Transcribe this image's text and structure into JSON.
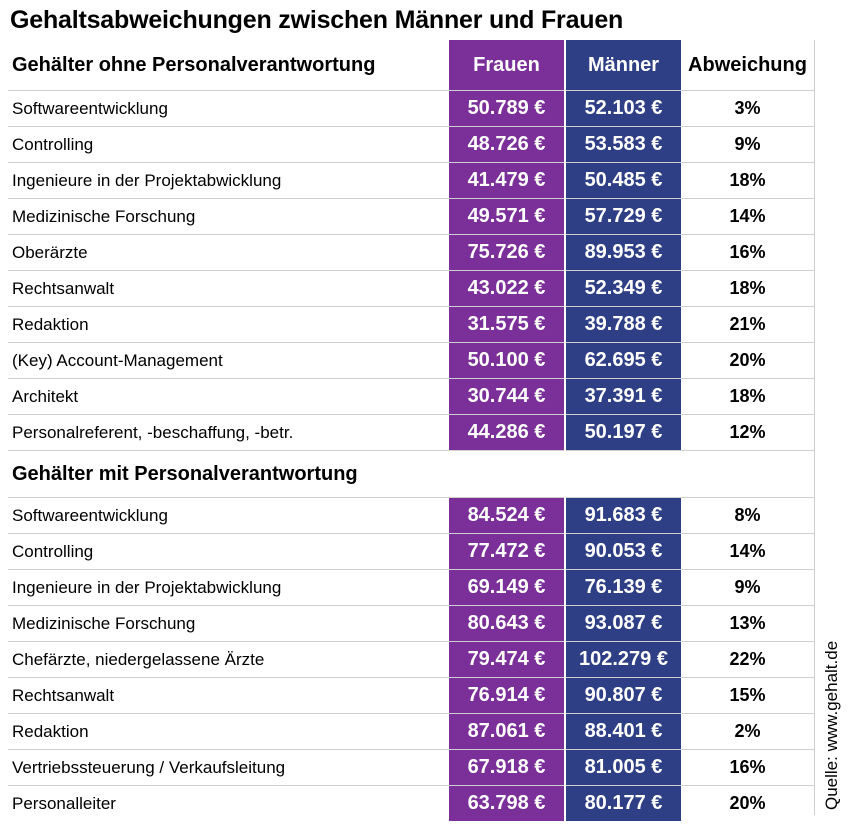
{
  "title": "Gehaltsabweichungen zwischen Männer und Frauen",
  "source": "Quelle: www.gehalt.de",
  "colors": {
    "frauen": "#7b2f98",
    "maenner": "#2f3f86"
  },
  "chart_data": {
    "type": "table",
    "columns": [
      "Frauen",
      "Männer",
      "Abweichung"
    ],
    "sections": [
      {
        "label": "Gehälter ohne Personalverantwortung",
        "rows": [
          {
            "category": "Softwareentwicklung",
            "frauen": "50.789 €",
            "maenner": "52.103 €",
            "abweichung": "3%"
          },
          {
            "category": "Controlling",
            "frauen": "48.726 €",
            "maenner": "53.583 €",
            "abweichung": "9%"
          },
          {
            "category": "Ingenieure in der Projektabwicklung",
            "frauen": "41.479 €",
            "maenner": "50.485 €",
            "abweichung": "18%"
          },
          {
            "category": "Medizinische Forschung",
            "frauen": "49.571 €",
            "maenner": "57.729 €",
            "abweichung": "14%"
          },
          {
            "category": "Oberärzte",
            "frauen": "75.726 €",
            "maenner": "89.953 €",
            "abweichung": "16%"
          },
          {
            "category": "Rechtsanwalt",
            "frauen": "43.022 €",
            "maenner": "52.349 €",
            "abweichung": "18%"
          },
          {
            "category": "Redaktion",
            "frauen": "31.575 €",
            "maenner": "39.788 €",
            "abweichung": "21%"
          },
          {
            "category": "(Key) Account-Management",
            "frauen": "50.100 €",
            "maenner": "62.695 €",
            "abweichung": "20%"
          },
          {
            "category": "Architekt",
            "frauen": "30.744 €",
            "maenner": "37.391 €",
            "abweichung": "18%"
          },
          {
            "category": "Personalreferent, -beschaffung, -betr.",
            "frauen": "44.286 €",
            "maenner": "50.197 €",
            "abweichung": "12%"
          }
        ]
      },
      {
        "label": "Gehälter mit Personalverantwortung",
        "rows": [
          {
            "category": "Softwareentwicklung",
            "frauen": "84.524 €",
            "maenner": "91.683 €",
            "abweichung": "8%"
          },
          {
            "category": "Controlling",
            "frauen": "77.472 €",
            "maenner": "90.053 €",
            "abweichung": "14%"
          },
          {
            "category": "Ingenieure in der Projektabwicklung",
            "frauen": "69.149 €",
            "maenner": "76.139 €",
            "abweichung": "9%"
          },
          {
            "category": "Medizinische Forschung",
            "frauen": "80.643 €",
            "maenner": "93.087 €",
            "abweichung": "13%"
          },
          {
            "category": "Chefärzte, niedergelassene Ärzte",
            "frauen": "79.474 €",
            "maenner": "102.279 €",
            "abweichung": "22%"
          },
          {
            "category": "Rechtsanwalt",
            "frauen": "76.914 €",
            "maenner": "90.807 €",
            "abweichung": "15%"
          },
          {
            "category": "Redaktion",
            "frauen": "87.061 €",
            "maenner": "88.401 €",
            "abweichung": "2%"
          },
          {
            "category": "Vertriebssteuerung / Verkaufsleitung",
            "frauen": "67.918 €",
            "maenner": "81.005 €",
            "abweichung": "16%"
          },
          {
            "category": "Personalleiter",
            "frauen": "63.798 €",
            "maenner": "80.177 €",
            "abweichung": "20%"
          }
        ]
      }
    ]
  }
}
